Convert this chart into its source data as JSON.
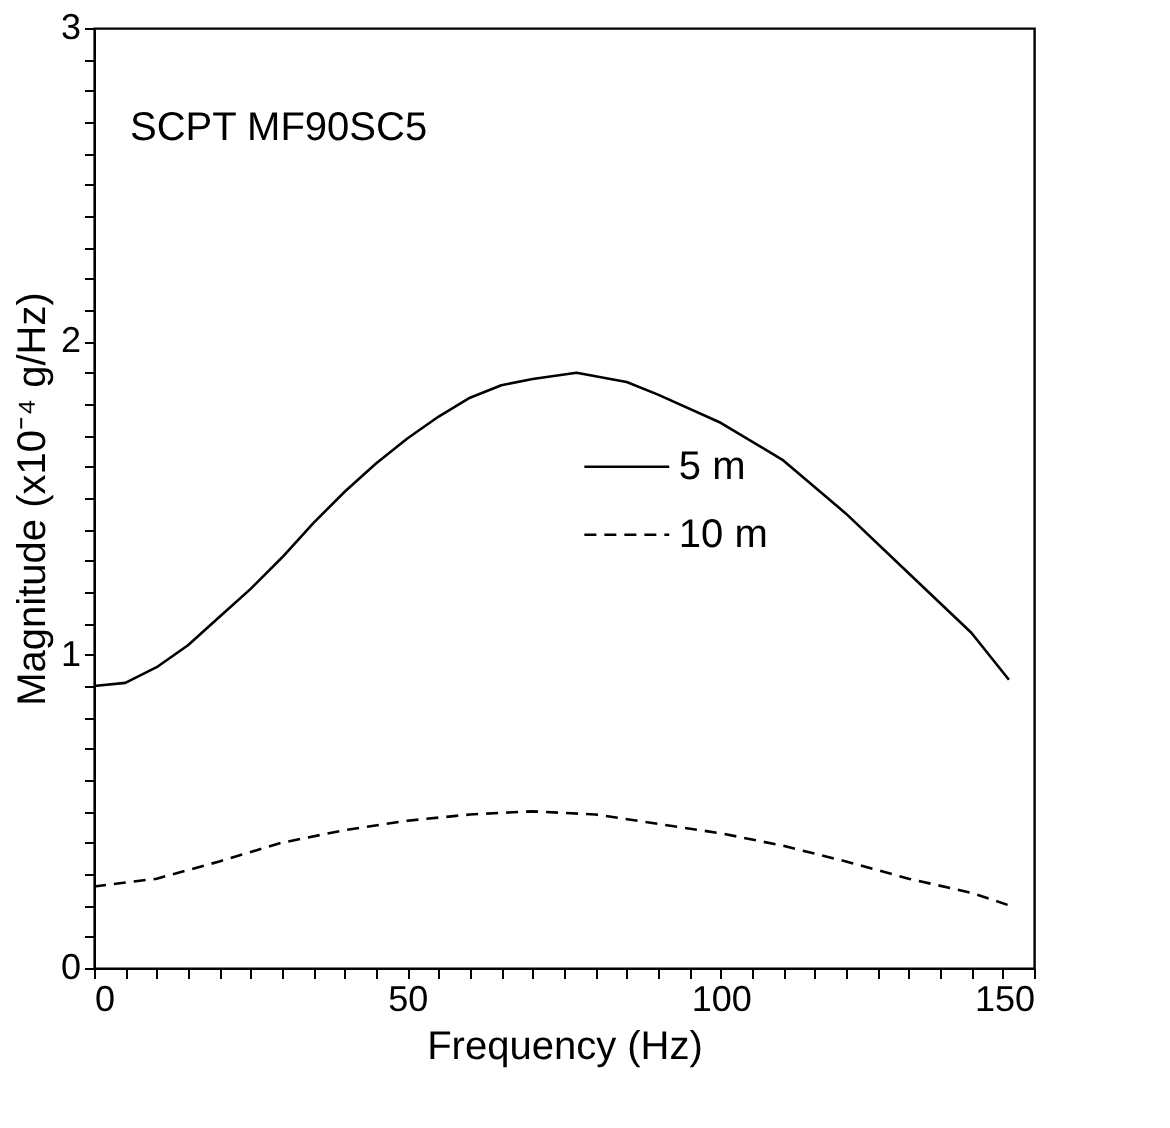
{
  "chart_data": {
    "type": "line",
    "xlabel": "Frequency (Hz)",
    "ylabel": "Magnitude (x10⁻⁴ g/Hz)",
    "annotations": [
      "SCPT MF90SC5"
    ],
    "xlim": [
      0,
      150
    ],
    "ylim": [
      0,
      3
    ],
    "xticks": [
      0,
      {
        "value": 5,
        "label": null
      },
      {
        "value": 10,
        "label": null
      },
      {
        "value": 15,
        "label": null
      },
      {
        "value": 20,
        "label": null
      },
      {
        "value": 25,
        "label": null
      },
      {
        "value": 30,
        "label": null
      },
      {
        "value": 35,
        "label": null
      },
      {
        "value": 40,
        "label": null
      },
      {
        "value": 45,
        "label": null
      },
      50,
      {
        "value": 55,
        "label": null
      },
      {
        "value": 60,
        "label": null
      },
      {
        "value": 65,
        "label": null
      },
      {
        "value": 70,
        "label": null
      },
      {
        "value": 75,
        "label": null
      },
      {
        "value": 80,
        "label": null
      },
      {
        "value": 85,
        "label": null
      },
      {
        "value": 90,
        "label": null
      },
      {
        "value": 95,
        "label": null
      },
      100,
      {
        "value": 105,
        "label": null
      },
      {
        "value": 110,
        "label": null
      },
      {
        "value": 115,
        "label": null
      },
      {
        "value": 120,
        "label": null
      },
      {
        "value": 125,
        "label": null
      },
      {
        "value": 130,
        "label": null
      },
      {
        "value": 135,
        "label": null
      },
      {
        "value": 140,
        "label": null
      },
      {
        "value": 145,
        "label": null
      },
      150
    ],
    "yticks": [
      0,
      {
        "value": 0.1,
        "label": null
      },
      {
        "value": 0.2,
        "label": null
      },
      {
        "value": 0.3,
        "label": null
      },
      {
        "value": 0.4,
        "label": null
      },
      {
        "value": 0.5,
        "label": null
      },
      {
        "value": 0.6,
        "label": null
      },
      {
        "value": 0.7,
        "label": null
      },
      {
        "value": 0.8,
        "label": null
      },
      {
        "value": 0.9,
        "label": null
      },
      1,
      {
        "value": 1.1,
        "label": null
      },
      {
        "value": 1.2,
        "label": null
      },
      {
        "value": 1.3,
        "label": null
      },
      {
        "value": 1.4,
        "label": null
      },
      {
        "value": 1.5,
        "label": null
      },
      {
        "value": 1.6,
        "label": null
      },
      {
        "value": 1.7,
        "label": null
      },
      {
        "value": 1.8,
        "label": null
      },
      {
        "value": 1.9,
        "label": null
      },
      2,
      {
        "value": 2.1,
        "label": null
      },
      {
        "value": 2.2,
        "label": null
      },
      {
        "value": 2.3,
        "label": null
      },
      {
        "value": 2.4,
        "label": null
      },
      {
        "value": 2.5,
        "label": null
      },
      {
        "value": 2.6,
        "label": null
      },
      {
        "value": 2.7,
        "label": null
      },
      {
        "value": 2.8,
        "label": null
      },
      {
        "value": 2.9,
        "label": null
      },
      3
    ],
    "grid": false,
    "legend": "right",
    "marker": "none",
    "series": [
      {
        "name": "5 m",
        "color": "#000000",
        "line_style": "solid",
        "x": [
          0,
          5,
          10,
          15,
          20,
          25,
          30,
          35,
          40,
          45,
          50,
          55,
          60,
          65,
          70,
          77,
          85,
          90,
          100,
          110,
          120,
          130,
          140,
          146
        ],
        "values": [
          0.9,
          0.91,
          0.96,
          1.03,
          1.12,
          1.21,
          1.31,
          1.42,
          1.52,
          1.61,
          1.69,
          1.76,
          1.82,
          1.86,
          1.88,
          1.9,
          1.87,
          1.83,
          1.74,
          1.62,
          1.45,
          1.26,
          1.07,
          0.92
        ]
      },
      {
        "name": "10 m",
        "color": "#000000",
        "line_style": "dashed",
        "x": [
          0,
          10,
          20,
          30,
          40,
          50,
          60,
          70,
          80,
          90,
          100,
          110,
          120,
          130,
          140,
          146
        ],
        "values": [
          0.26,
          0.285,
          0.34,
          0.4,
          0.44,
          0.47,
          0.49,
          0.5,
          0.49,
          0.46,
          0.43,
          0.39,
          0.34,
          0.285,
          0.24,
          0.2
        ]
      }
    ]
  }
}
